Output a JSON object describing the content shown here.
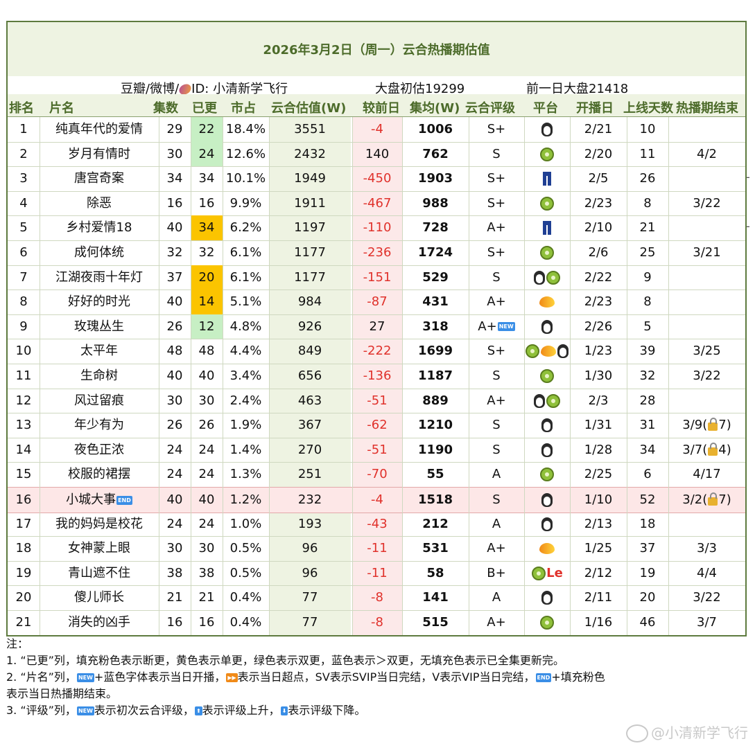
{
  "title": "2026年3月2日（周一）云合热播期估值",
  "info": {
    "source": "豆瓣/微博/",
    "source_icon": "sweet-potato-icon",
    "id_label": "ID: 小清新学飞行",
    "market_est": "大盘初估19299",
    "prev_market": "前一日大盘21418"
  },
  "headers": [
    "排名",
    "片名",
    "集数",
    "已更",
    "市占",
    "云合估值(W)",
    "较前日",
    "集均(W)",
    "云合评级",
    "平台",
    "开播日",
    "上线天数",
    "热播期结束"
  ],
  "colors": {
    "border": "#5d7a3e",
    "header_band": "#eef3e2",
    "header_text": "#4c6b2a",
    "negative": "#e0312b",
    "fill_green": "#c7efc4",
    "fill_yellow": "#fbc400",
    "highlight_row": "#fde7e7"
  },
  "rows": [
    {
      "rank": "1",
      "title": "纯真年代的爱情",
      "eps": "29",
      "updated": "22",
      "updated_fill": "green",
      "share": "18.4%",
      "value": "3551",
      "delta": "-4",
      "avg": "1006",
      "rating": "S+",
      "platforms": [
        "penguin"
      ],
      "start": "2/21",
      "days": "10",
      "end": ""
    },
    {
      "rank": "2",
      "title": "岁月有情时",
      "eps": "30",
      "updated": "24",
      "updated_fill": "green",
      "share": "12.6%",
      "value": "2432",
      "delta": "140",
      "avg": "762",
      "rating": "S",
      "platforms": [
        "kiwi"
      ],
      "start": "2/20",
      "days": "11",
      "end": "4/2"
    },
    {
      "rank": "3",
      "title": "唐宫奇案",
      "eps": "34",
      "updated": "34",
      "updated_fill": "",
      "share": "10.1%",
      "value": "1949",
      "delta": "-450",
      "avg": "1903",
      "rating": "S+",
      "platforms": [
        "pants"
      ],
      "start": "2/5",
      "days": "26",
      "end": ""
    },
    {
      "rank": "4",
      "title": "除恶",
      "eps": "16",
      "updated": "16",
      "updated_fill": "",
      "share": "9.9%",
      "value": "1911",
      "delta": "-467",
      "avg": "988",
      "rating": "S+",
      "platforms": [
        "kiwi"
      ],
      "start": "2/23",
      "days": "8",
      "end": "3/22"
    },
    {
      "rank": "5",
      "title": "乡村爱情18",
      "eps": "40",
      "updated": "34",
      "updated_fill": "yellow",
      "share": "6.2%",
      "value": "1197",
      "delta": "-110",
      "avg": "728",
      "rating": "A+",
      "platforms": [
        "pants"
      ],
      "start": "2/10",
      "days": "21",
      "end": ""
    },
    {
      "rank": "6",
      "title": "成何体统",
      "eps": "32",
      "updated": "32",
      "updated_fill": "",
      "share": "6.1%",
      "value": "1177",
      "delta": "-236",
      "avg": "1724",
      "rating": "S+",
      "platforms": [
        "kiwi"
      ],
      "start": "2/6",
      "days": "25",
      "end": "3/21"
    },
    {
      "rank": "7",
      "title": "江湖夜雨十年灯",
      "eps": "37",
      "updated": "20",
      "updated_fill": "yellow",
      "share": "6.1%",
      "value": "1177",
      "delta": "-151",
      "avg": "529",
      "rating": "S",
      "platforms": [
        "penguin",
        "kiwi"
      ],
      "start": "2/22",
      "days": "9",
      "end": ""
    },
    {
      "rank": "8",
      "title": "好好的时光",
      "eps": "40",
      "updated": "14",
      "updated_fill": "yellow",
      "share": "5.1%",
      "value": "984",
      "delta": "-87",
      "avg": "431",
      "rating": "A+",
      "platforms": [
        "mango"
      ],
      "start": "2/23",
      "days": "8",
      "end": ""
    },
    {
      "rank": "9",
      "title": "玫瑰丛生",
      "eps": "26",
      "updated": "12",
      "updated_fill": "green",
      "share": "4.8%",
      "value": "926",
      "delta": "27",
      "avg": "318",
      "rating": "A+",
      "rating_tag": "NEW",
      "platforms": [
        "penguin"
      ],
      "start": "2/26",
      "days": "5",
      "end": ""
    },
    {
      "rank": "10",
      "title": "太平年",
      "eps": "48",
      "updated": "48",
      "updated_fill": "",
      "share": "4.4%",
      "value": "849",
      "delta": "-222",
      "avg": "1699",
      "rating": "S+",
      "platforms": [
        "kiwi",
        "mango",
        "penguin"
      ],
      "start": "1/23",
      "days": "39",
      "end": "3/25"
    },
    {
      "rank": "11",
      "title": "生命树",
      "eps": "40",
      "updated": "40",
      "updated_fill": "",
      "share": "3.4%",
      "value": "656",
      "delta": "-136",
      "avg": "1187",
      "rating": "S",
      "platforms": [
        "kiwi"
      ],
      "start": "1/30",
      "days": "32",
      "end": "3/22"
    },
    {
      "rank": "12",
      "title": "风过留痕",
      "eps": "30",
      "updated": "30",
      "updated_fill": "",
      "share": "2.4%",
      "value": "463",
      "delta": "-51",
      "avg": "889",
      "rating": "A+",
      "platforms": [
        "penguin",
        "kiwi"
      ],
      "start": "2/3",
      "days": "28",
      "end": ""
    },
    {
      "rank": "13",
      "title": "年少有为",
      "eps": "26",
      "updated": "26",
      "updated_fill": "",
      "share": "1.9%",
      "value": "367",
      "delta": "-62",
      "avg": "1210",
      "rating": "S",
      "platforms": [
        "penguin"
      ],
      "start": "1/31",
      "days": "31",
      "end": "3/9(",
      "end_lock": "7)"
    },
    {
      "rank": "14",
      "title": "夜色正浓",
      "eps": "24",
      "updated": "24",
      "updated_fill": "",
      "share": "1.4%",
      "value": "270",
      "delta": "-51",
      "avg": "1190",
      "rating": "S",
      "platforms": [
        "penguin"
      ],
      "start": "1/28",
      "days": "34",
      "end": "3/7(",
      "end_lock": "4)"
    },
    {
      "rank": "15",
      "title": "校服的裙摆",
      "eps": "24",
      "updated": "24",
      "updated_fill": "",
      "share": "1.3%",
      "value": "251",
      "delta": "-70",
      "avg": "55",
      "rating": "A",
      "platforms": [
        "kiwi"
      ],
      "start": "2/25",
      "days": "6",
      "end": "4/17"
    },
    {
      "rank": "16",
      "title": "小城大事",
      "title_tag": "END",
      "eps": "40",
      "updated": "40",
      "updated_fill": "",
      "share": "1.2%",
      "value": "232",
      "delta": "-4",
      "avg": "1518",
      "rating": "S",
      "platforms": [
        "penguin"
      ],
      "start": "1/10",
      "days": "52",
      "end": "3/2(",
      "end_lock": "7)",
      "highlight": true
    },
    {
      "rank": "17",
      "title": "我的妈妈是校花",
      "eps": "24",
      "updated": "24",
      "updated_fill": "",
      "share": "1.0%",
      "value": "193",
      "delta": "-43",
      "avg": "212",
      "rating": "A",
      "platforms": [
        "penguin"
      ],
      "start": "2/13",
      "days": "18",
      "end": ""
    },
    {
      "rank": "18",
      "title": "女神蒙上眼",
      "eps": "30",
      "updated": "30",
      "updated_fill": "",
      "share": "0.5%",
      "value": "96",
      "delta": "-11",
      "avg": "531",
      "rating": "A+",
      "platforms": [
        "mango"
      ],
      "start": "1/25",
      "days": "37",
      "end": "3/3"
    },
    {
      "rank": "19",
      "title": "青山遮不住",
      "eps": "38",
      "updated": "38",
      "updated_fill": "",
      "share": "0.5%",
      "value": "96",
      "delta": "-11",
      "avg": "58",
      "rating": "B+",
      "platforms": [
        "kiwi",
        "le"
      ],
      "start": "2/12",
      "days": "19",
      "end": "4/4"
    },
    {
      "rank": "20",
      "title": "傻儿师长",
      "eps": "21",
      "updated": "21",
      "updated_fill": "",
      "share": "0.4%",
      "value": "77",
      "delta": "-8",
      "avg": "141",
      "rating": "A",
      "platforms": [
        "penguin"
      ],
      "start": "2/11",
      "days": "20",
      "end": "3/22"
    },
    {
      "rank": "21",
      "title": "消失的凶手",
      "eps": "16",
      "updated": "16",
      "updated_fill": "",
      "share": "0.4%",
      "value": "77",
      "delta": "-8",
      "avg": "515",
      "rating": "A+",
      "platforms": [
        "kiwi"
      ],
      "start": "1/16",
      "days": "46",
      "end": "3/7"
    }
  ],
  "margin_marks": [
    "-",
    "-"
  ],
  "notes": {
    "label": "注：",
    "line1": "1. “已更”列，填充粉色表示断更，黄色表示单更，绿色表示双更，蓝色表示＞双更，无填充色表示已全集更新完。",
    "line2a": "2. “片名”列，",
    "line2b": "+蓝色字体表示当日开播，",
    "line2c": "表示当日超点，SV表示SVIP当日完结，V表示VIP当日完结，",
    "line2d": "+填充粉色",
    "line2e": "表示当日热播期结束。",
    "line3a": "3. “评级”列，",
    "line3b": "表示初次云合评级，",
    "line3c": "表示评级上升，",
    "line3d": "表示评级下降。"
  },
  "watermark": "@小清新学飞行"
}
